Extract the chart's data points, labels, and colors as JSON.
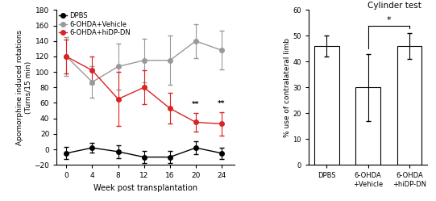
{
  "line_x": [
    0,
    4,
    8,
    12,
    16,
    20,
    24
  ],
  "dpbs_y": [
    -5,
    2,
    -3,
    -10,
    -10,
    2,
    -5
  ],
  "dpbs_err": [
    8,
    6,
    8,
    8,
    8,
    8,
    7
  ],
  "vehicle_y": [
    120,
    87,
    107,
    115,
    115,
    140,
    128
  ],
  "vehicle_err": [
    25,
    20,
    30,
    28,
    32,
    22,
    25
  ],
  "hidpdn_y": [
    120,
    102,
    65,
    80,
    53,
    35,
    33
  ],
  "hidpdn_err": [
    22,
    18,
    35,
    22,
    20,
    12,
    15
  ],
  "dpbs_color": "#000000",
  "vehicle_color": "#999999",
  "hidpdn_color": "#dd2222",
  "line_ylim": [
    -20,
    180
  ],
  "line_xlabel": "Week post transplantation",
  "line_ylabel": "Apomorphine induced rotations\n(Turns/15 min)",
  "legend_labels": [
    "DPBS",
    "6-OHDA+Vehicle",
    "6-OHDA+hiDP-DN"
  ],
  "bar_categories": [
    "DPBS",
    "6-OHDA\n+Vehicle",
    "6-OHDA\n+hiDP-DN"
  ],
  "bar_values": [
    46,
    30,
    46
  ],
  "bar_errors": [
    4,
    13,
    5
  ],
  "bar_color": "#ffffff",
  "bar_edge_color": "#000000",
  "bar_ylabel": "% use of contralateral limb",
  "bar_title": "Cylinder test",
  "bar_ylim": [
    0,
    60
  ],
  "bar_yticks": [
    0,
    10,
    20,
    30,
    40,
    50,
    60
  ],
  "sig_marker_wk20": "**",
  "sig_marker_wk24": "**",
  "background_color": "#ffffff"
}
